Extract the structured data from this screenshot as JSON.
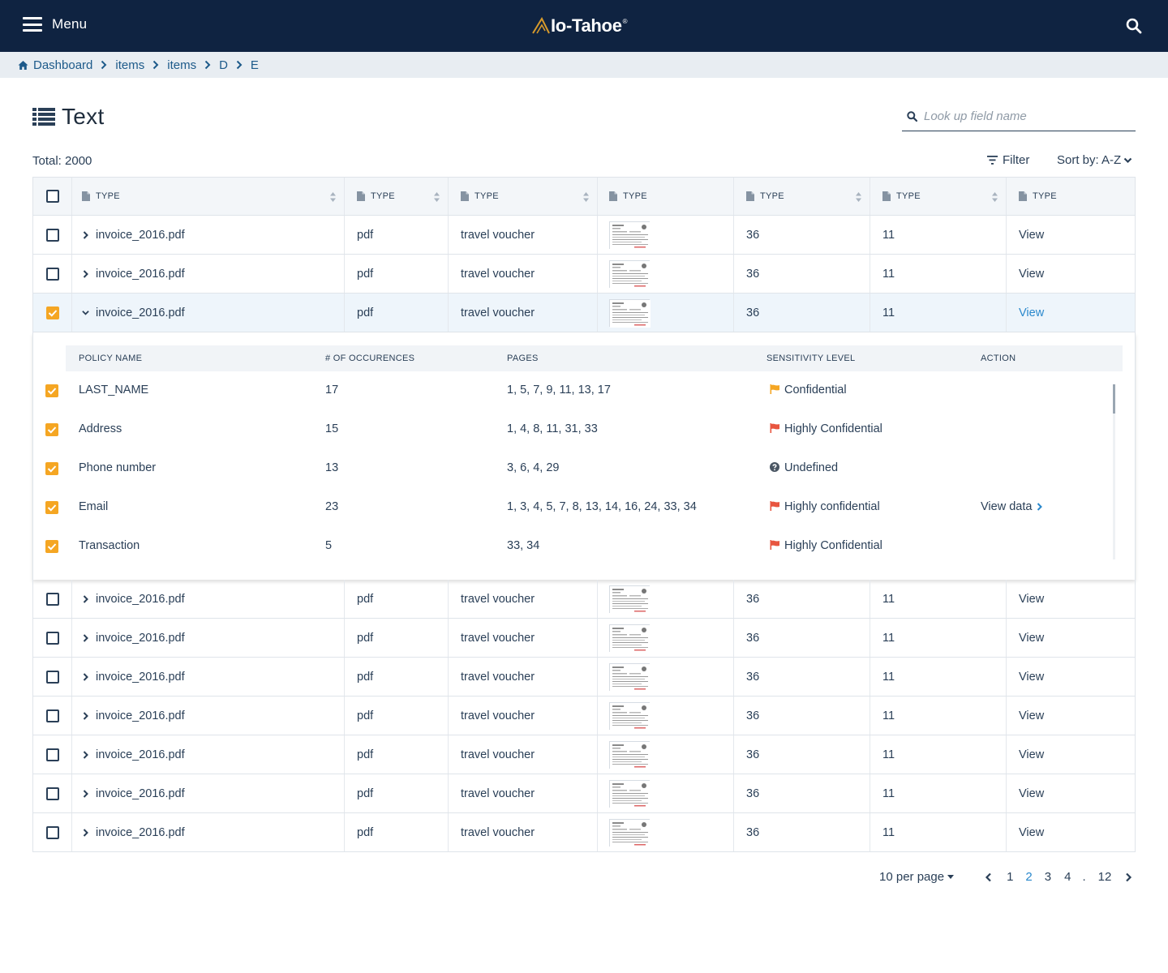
{
  "header": {
    "menu_label": "Menu",
    "logo_text": "Io-Tahoe",
    "logo_mark": "®"
  },
  "breadcrumb": [
    "Dashboard",
    "items",
    "items",
    "D",
    "E"
  ],
  "page": {
    "title": "Text",
    "search_placeholder": "Look up field name",
    "total_label": "Total: 2000",
    "filter_label": "Filter",
    "sort_label": "Sort by: A-Z"
  },
  "table": {
    "columns": [
      "TYPE",
      "TYPE",
      "TYPE",
      "TYPE",
      "TYPE",
      "TYPE",
      "TYPE"
    ],
    "rows": [
      {
        "name": "invoice_2016.pdf",
        "format": "pdf",
        "category": "travel voucher",
        "pages": "36",
        "count": "11",
        "action": "View",
        "checked": false,
        "expanded": false
      },
      {
        "name": "invoice_2016.pdf",
        "format": "pdf",
        "category": "travel voucher",
        "pages": "36",
        "count": "11",
        "action": "View",
        "checked": false,
        "expanded": false
      },
      {
        "name": "invoice_2016.pdf",
        "format": "pdf",
        "category": "travel voucher",
        "pages": "36",
        "count": "11",
        "action": "View",
        "checked": true,
        "expanded": true
      },
      {
        "name": "invoice_2016.pdf",
        "format": "pdf",
        "category": "travel voucher",
        "pages": "36",
        "count": "11",
        "action": "View",
        "checked": false,
        "expanded": false
      },
      {
        "name": "invoice_2016.pdf",
        "format": "pdf",
        "category": "travel voucher",
        "pages": "36",
        "count": "11",
        "action": "View",
        "checked": false,
        "expanded": false
      },
      {
        "name": "invoice_2016.pdf",
        "format": "pdf",
        "category": "travel voucher",
        "pages": "36",
        "count": "11",
        "action": "View",
        "checked": false,
        "expanded": false
      },
      {
        "name": "invoice_2016.pdf",
        "format": "pdf",
        "category": "travel voucher",
        "pages": "36",
        "count": "11",
        "action": "View",
        "checked": false,
        "expanded": false
      },
      {
        "name": "invoice_2016.pdf",
        "format": "pdf",
        "category": "travel voucher",
        "pages": "36",
        "count": "11",
        "action": "View",
        "checked": false,
        "expanded": false
      },
      {
        "name": "invoice_2016.pdf",
        "format": "pdf",
        "category": "travel voucher",
        "pages": "36",
        "count": "11",
        "action": "View",
        "checked": false,
        "expanded": false
      },
      {
        "name": "invoice_2016.pdf",
        "format": "pdf",
        "category": "travel voucher",
        "pages": "36",
        "count": "11",
        "action": "View",
        "checked": false,
        "expanded": false
      }
    ]
  },
  "detail": {
    "columns": [
      "POLICY NAME",
      "# OF OCCURENCES",
      "PAGES",
      "SENSITIVITY LEVEL",
      "ACTION"
    ],
    "rows": [
      {
        "policy": "LAST_NAME",
        "occurrences": "17",
        "pages": "1, 5, 7, 9, 11, 13, 17",
        "level": "Confidential",
        "level_icon": "flag-icon",
        "level_color": "#f5a623",
        "action": ""
      },
      {
        "policy": "Address",
        "occurrences": "15",
        "pages": "1, 4, 8, 11, 31, 33",
        "level": "Highly Confidential",
        "level_icon": "flag-icon",
        "level_color": "#e8553f",
        "action": ""
      },
      {
        "policy": "Phone number",
        "occurrences": "13",
        "pages": "3, 6, 4, 29",
        "level": "Undefined",
        "level_icon": "question-circle-icon",
        "level_color": "#4a5663",
        "action": ""
      },
      {
        "policy": "Email",
        "occurrences": "23",
        "pages": "1, 3, 4, 5, 7, 8, 13, 14, 16, 24, 33, 34",
        "level": "Highly confidential",
        "level_icon": "flag-icon",
        "level_color": "#e8553f",
        "action": "View data"
      },
      {
        "policy": "Transaction",
        "occurrences": "5",
        "pages": "33, 34",
        "level": "Highly Confidential",
        "level_icon": "flag-icon",
        "level_color": "#e8553f",
        "action": ""
      }
    ]
  },
  "pagination": {
    "per_page": "10 per page",
    "pages": [
      "1",
      "2",
      "3",
      "4",
      ".",
      "12"
    ],
    "current": "2"
  },
  "colors": {
    "topbar": "#0f2341",
    "accent": "#f5a623",
    "link": "#2a88cc"
  }
}
